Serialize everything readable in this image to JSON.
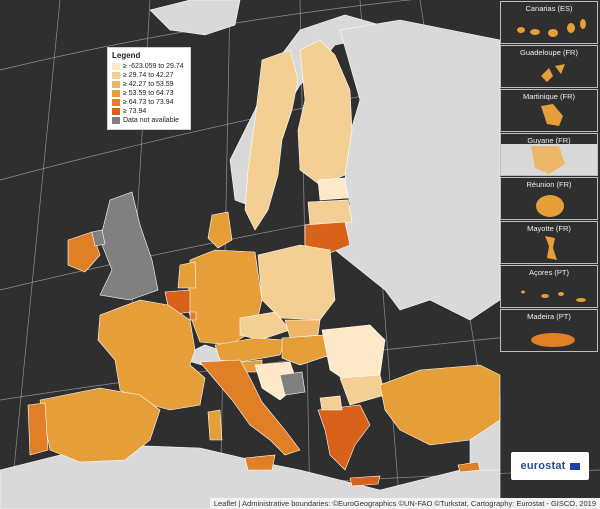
{
  "legend": {
    "title": "Legend",
    "items": [
      {
        "label": "≥ -623.059 to 29.74",
        "color": "#fde9c8"
      },
      {
        "label": "≥ 29.74 to 42.27",
        "color": "#f4cf93"
      },
      {
        "label": "≥ 42.27 to 53.59",
        "color": "#eeb768"
      },
      {
        "label": "≥ 53.59 to 64.73",
        "color": "#e69e38"
      },
      {
        "label": "≥ 64.73 to 73.94",
        "color": "#e07f25"
      },
      {
        "label": "≥ 73.94",
        "color": "#d9621b"
      },
      {
        "label": "Data not available",
        "color": "#808080"
      }
    ]
  },
  "insets": [
    {
      "label": "Canarias (ES)"
    },
    {
      "label": "Guadeloupe (FR)"
    },
    {
      "label": "Martinique (FR)"
    },
    {
      "label": "Guyane (FR)"
    },
    {
      "label": "Réunion (FR)"
    },
    {
      "label": "Mayotte (FR)"
    },
    {
      "label": "Açores (PT)"
    },
    {
      "label": "Madeira (PT)"
    }
  ],
  "logo": {
    "text": "eurostat"
  },
  "attribution": "Leaflet | Administrative boundaries: ©EuroGeographics ©UN-FAO ©Turkstat, Cartography: Eurostat - GISCO, 2019",
  "colors": {
    "sea": "#2f2f2f",
    "nonEU": "#d9d9d9",
    "noData": "#808080",
    "c1": "#fde9c8",
    "c2": "#f4cf93",
    "c3": "#eeb768",
    "c4": "#e69e38",
    "c5": "#e07f25",
    "c6": "#d9621b"
  }
}
